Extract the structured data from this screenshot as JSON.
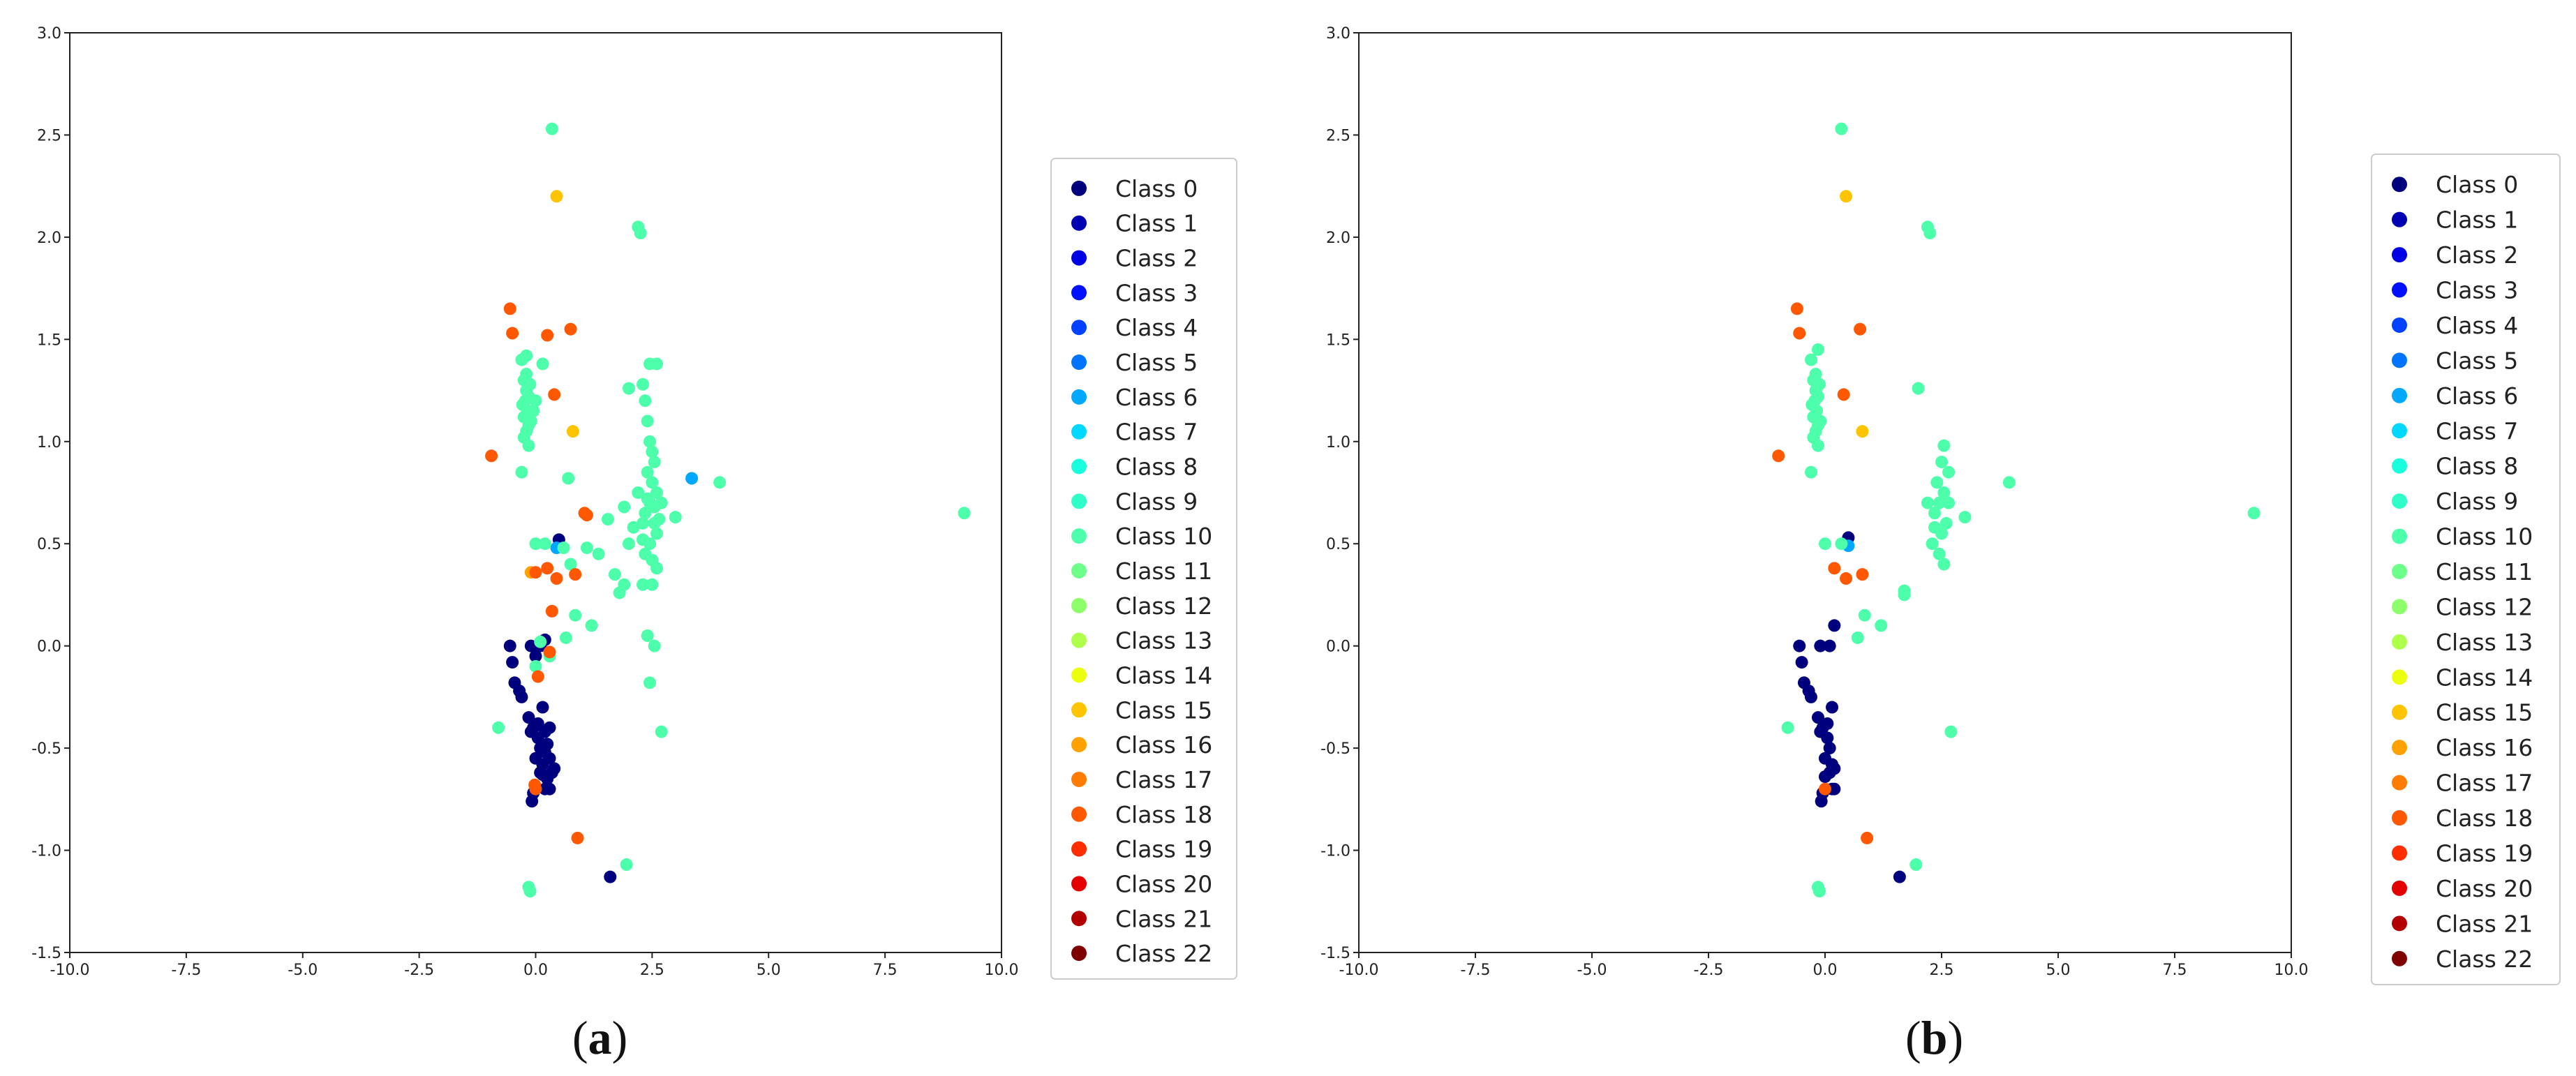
{
  "captions": {
    "a": "(a)",
    "b": "(b)",
    "a_letter": "a",
    "b_letter": "b"
  },
  "class_colors": [
    "#00007f",
    "#0000b2",
    "#0000e5",
    "#0010ff",
    "#0042ff",
    "#0074ff",
    "#00a8ff",
    "#00d8ff",
    "#18ffdd",
    "#2effc8",
    "#4dffaa",
    "#6dff8a",
    "#8dff6a",
    "#adff4a",
    "#ebff0c",
    "#ffc400",
    "#ffa100",
    "#ff7c00",
    "#ff5800",
    "#ff2d00",
    "#e40000",
    "#b20000",
    "#7f0000"
  ],
  "chart_data": [
    {
      "type": "scatter",
      "panel": "a",
      "title": "",
      "xlabel": "",
      "ylabel": "",
      "xlim": [
        -10.0,
        10.0
      ],
      "ylim": [
        -1.5,
        3.0
      ],
      "xticks": [
        "-10.0",
        "-7.5",
        "-5.0",
        "-2.5",
        "0.0",
        "2.5",
        "5.0",
        "7.5",
        "10.0"
      ],
      "yticks": [
        "-1.5",
        "-1.0",
        "-0.5",
        "0.0",
        "0.5",
        "1.0",
        "1.5",
        "2.0",
        "2.5",
        "3.0"
      ],
      "legend_position": "right, outside plot",
      "legend": [
        "Class 0",
        "Class 1",
        "Class 2",
        "Class 3",
        "Class 4",
        "Class 5",
        "Class 6",
        "Class 7",
        "Class 8",
        "Class 9",
        "Class 10",
        "Class 11",
        "Class 12",
        "Class 13",
        "Class 14",
        "Class 15",
        "Class 16",
        "Class 17",
        "Class 18",
        "Class 19",
        "Class 20",
        "Class 21",
        "Class 22"
      ],
      "series": [
        {
          "name": "Class 0",
          "color_index": 0,
          "points": [
            [
              -0.55,
              0.0
            ],
            [
              -0.5,
              -0.08
            ],
            [
              -0.45,
              -0.18
            ],
            [
              -0.35,
              -0.22
            ],
            [
              -0.3,
              -0.25
            ],
            [
              -0.1,
              0.0
            ],
            [
              0.0,
              -0.05
            ],
            [
              0.1,
              0.0
            ],
            [
              -0.15,
              -0.35
            ],
            [
              -0.05,
              -0.4
            ],
            [
              0.05,
              -0.38
            ],
            [
              0.15,
              -0.3
            ],
            [
              0.2,
              -0.42
            ],
            [
              0.25,
              -0.48
            ],
            [
              0.1,
              -0.5
            ],
            [
              0.0,
              -0.55
            ],
            [
              0.15,
              -0.58
            ],
            [
              0.3,
              -0.55
            ],
            [
              0.35,
              -0.62
            ],
            [
              0.4,
              -0.6
            ],
            [
              0.25,
              -0.65
            ],
            [
              0.1,
              -0.62
            ],
            [
              0.2,
              -0.7
            ],
            [
              0.3,
              -0.4
            ],
            [
              0.05,
              -0.45
            ],
            [
              -0.1,
              -0.42
            ],
            [
              0.2,
              -0.52
            ],
            [
              0.15,
              -0.63
            ],
            [
              -0.05,
              -0.72
            ],
            [
              -0.08,
              -0.76
            ],
            [
              0.3,
              -0.7
            ],
            [
              1.6,
              -1.13
            ],
            [
              0.5,
              0.52
            ],
            [
              0.2,
              0.03
            ]
          ]
        },
        {
          "name": "Class 6",
          "color_index": 6,
          "points": [
            [
              3.35,
              0.82
            ],
            [
              0.45,
              0.48
            ]
          ]
        },
        {
          "name": "Class 10",
          "color_index": 10,
          "points": [
            [
              0.35,
              2.53
            ],
            [
              2.2,
              2.05
            ],
            [
              2.25,
              2.02
            ],
            [
              -0.3,
              1.4
            ],
            [
              -0.2,
              1.42
            ],
            [
              0.15,
              1.38
            ],
            [
              -0.25,
              1.3
            ],
            [
              -0.2,
              1.25
            ],
            [
              -0.15,
              1.22
            ],
            [
              -0.22,
              1.2
            ],
            [
              -0.18,
              1.15
            ],
            [
              -0.25,
              1.12
            ],
            [
              -0.15,
              1.08
            ],
            [
              -0.2,
              1.05
            ],
            [
              -0.1,
              1.1
            ],
            [
              -0.28,
              1.18
            ],
            [
              -0.12,
              1.28
            ],
            [
              -0.2,
              1.33
            ],
            [
              -0.25,
              1.02
            ],
            [
              -0.15,
              0.98
            ],
            [
              0.0,
              1.2
            ],
            [
              -0.05,
              1.15
            ],
            [
              2.45,
              1.38
            ],
            [
              2.6,
              1.38
            ],
            [
              2.0,
              1.26
            ],
            [
              2.3,
              1.28
            ],
            [
              2.35,
              1.2
            ],
            [
              2.4,
              1.1
            ],
            [
              2.45,
              1.0
            ],
            [
              2.5,
              0.95
            ],
            [
              2.55,
              0.9
            ],
            [
              2.4,
              0.85
            ],
            [
              2.5,
              0.8
            ],
            [
              2.6,
              0.75
            ],
            [
              2.45,
              0.7
            ],
            [
              2.35,
              0.65
            ],
            [
              2.55,
              0.6
            ],
            [
              2.6,
              0.55
            ],
            [
              2.45,
              0.5
            ],
            [
              2.35,
              0.45
            ],
            [
              2.5,
              0.42
            ],
            [
              2.6,
              0.38
            ],
            [
              2.3,
              0.6
            ],
            [
              2.4,
              0.72
            ],
            [
              2.55,
              0.68
            ],
            [
              2.65,
              0.62
            ],
            [
              2.3,
              0.52
            ],
            [
              2.2,
              0.75
            ],
            [
              2.7,
              0.7
            ],
            [
              2.5,
              0.3
            ],
            [
              2.3,
              0.3
            ],
            [
              2.0,
              0.5
            ],
            [
              2.1,
              0.58
            ],
            [
              1.9,
              0.68
            ],
            [
              3.0,
              0.63
            ],
            [
              3.95,
              0.8
            ],
            [
              9.2,
              0.65
            ],
            [
              0.7,
              0.82
            ],
            [
              -0.3,
              0.85
            ],
            [
              0.0,
              0.5
            ],
            [
              0.2,
              0.5
            ],
            [
              0.6,
              0.48
            ],
            [
              0.75,
              0.4
            ],
            [
              1.1,
              0.48
            ],
            [
              1.35,
              0.45
            ],
            [
              1.55,
              0.62
            ],
            [
              1.7,
              0.35
            ],
            [
              1.9,
              0.3
            ],
            [
              1.8,
              0.26
            ],
            [
              0.85,
              0.15
            ],
            [
              0.65,
              0.04
            ],
            [
              0.1,
              0.02
            ],
            [
              0.3,
              -0.05
            ],
            [
              0.0,
              -0.1
            ],
            [
              1.2,
              0.1
            ],
            [
              2.4,
              0.05
            ],
            [
              2.55,
              0.0
            ],
            [
              2.45,
              -0.18
            ],
            [
              2.7,
              -0.42
            ],
            [
              -0.8,
              -0.4
            ],
            [
              1.95,
              -1.07
            ],
            [
              -0.15,
              -1.18
            ],
            [
              -0.12,
              -1.2
            ]
          ]
        },
        {
          "name": "Class 15",
          "color_index": 15,
          "points": [
            [
              0.45,
              2.2
            ],
            [
              0.8,
              1.05
            ]
          ]
        },
        {
          "name": "Class 16",
          "color_index": 16,
          "points": [
            [
              -0.1,
              0.36
            ]
          ]
        },
        {
          "name": "Class 18",
          "color_index": 18,
          "points": [
            [
              -0.55,
              1.65
            ],
            [
              -0.5,
              1.53
            ],
            [
              0.75,
              1.55
            ],
            [
              0.25,
              1.52
            ],
            [
              0.4,
              1.23
            ],
            [
              -0.95,
              0.93
            ],
            [
              1.05,
              0.65
            ],
            [
              1.1,
              0.64
            ],
            [
              0.0,
              0.36
            ],
            [
              0.25,
              0.38
            ],
            [
              0.45,
              0.33
            ],
            [
              0.85,
              0.35
            ],
            [
              0.35,
              0.17
            ],
            [
              0.05,
              -0.15
            ],
            [
              0.3,
              -0.03
            ],
            [
              0.0,
              -0.7
            ],
            [
              -0.02,
              -0.68
            ],
            [
              0.9,
              -0.94
            ]
          ]
        }
      ]
    },
    {
      "type": "scatter",
      "panel": "b",
      "title": "",
      "xlabel": "",
      "ylabel": "",
      "xlim": [
        -10.0,
        10.0
      ],
      "ylim": [
        -1.5,
        3.0
      ],
      "xticks": [
        "-10.0",
        "-7.5",
        "-5.0",
        "-2.5",
        "0.0",
        "2.5",
        "5.0",
        "7.5",
        "10.0"
      ],
      "yticks": [
        "-1.5",
        "-1.0",
        "-0.5",
        "0.0",
        "0.5",
        "1.0",
        "1.5",
        "2.0",
        "2.5",
        "3.0"
      ],
      "legend_position": "right, outside plot",
      "legend": [
        "Class 0",
        "Class 1",
        "Class 2",
        "Class 3",
        "Class 4",
        "Class 5",
        "Class 6",
        "Class 7",
        "Class 8",
        "Class 9",
        "Class 10",
        "Class 11",
        "Class 12",
        "Class 13",
        "Class 14",
        "Class 15",
        "Class 16",
        "Class 17",
        "Class 18",
        "Class 19",
        "Class 20",
        "Class 21",
        "Class 22"
      ],
      "series": [
        {
          "name": "Class 0",
          "color_index": 0,
          "points": [
            [
              -0.55,
              0.0
            ],
            [
              -0.5,
              -0.08
            ],
            [
              -0.45,
              -0.18
            ],
            [
              -0.35,
              -0.22
            ],
            [
              -0.3,
              -0.25
            ],
            [
              -0.1,
              0.0
            ],
            [
              0.1,
              0.0
            ],
            [
              0.2,
              0.1
            ],
            [
              -0.15,
              -0.35
            ],
            [
              -0.05,
              -0.4
            ],
            [
              0.05,
              -0.38
            ],
            [
              0.15,
              -0.3
            ],
            [
              0.1,
              -0.5
            ],
            [
              0.0,
              -0.55
            ],
            [
              0.15,
              -0.58
            ],
            [
              0.2,
              -0.6
            ],
            [
              0.1,
              -0.62
            ],
            [
              0.2,
              -0.7
            ],
            [
              0.05,
              -0.45
            ],
            [
              -0.1,
              -0.42
            ],
            [
              -0.05,
              -0.72
            ],
            [
              -0.08,
              -0.76
            ],
            [
              0.15,
              -0.7
            ],
            [
              0.0,
              -0.64
            ],
            [
              1.6,
              -1.13
            ],
            [
              0.5,
              0.53
            ]
          ]
        },
        {
          "name": "Class 6",
          "color_index": 6,
          "points": [
            [
              0.5,
              0.49
            ]
          ]
        },
        {
          "name": "Class 10",
          "color_index": 10,
          "points": [
            [
              0.35,
              2.53
            ],
            [
              2.2,
              2.05
            ],
            [
              2.25,
              2.02
            ],
            [
              -0.3,
              1.4
            ],
            [
              -0.15,
              1.45
            ],
            [
              -0.25,
              1.3
            ],
            [
              -0.2,
              1.25
            ],
            [
              -0.15,
              1.22
            ],
            [
              -0.22,
              1.2
            ],
            [
              -0.18,
              1.15
            ],
            [
              -0.25,
              1.12
            ],
            [
              -0.15,
              1.08
            ],
            [
              -0.2,
              1.05
            ],
            [
              -0.1,
              1.1
            ],
            [
              -0.28,
              1.18
            ],
            [
              -0.12,
              1.28
            ],
            [
              -0.2,
              1.33
            ],
            [
              -0.25,
              1.02
            ],
            [
              -0.15,
              0.98
            ],
            [
              2.0,
              1.26
            ],
            [
              2.55,
              0.98
            ],
            [
              2.5,
              0.9
            ],
            [
              2.65,
              0.85
            ],
            [
              2.4,
              0.8
            ],
            [
              2.55,
              0.75
            ],
            [
              2.45,
              0.7
            ],
            [
              2.35,
              0.65
            ],
            [
              2.6,
              0.6
            ],
            [
              2.5,
              0.55
            ],
            [
              2.3,
              0.5
            ],
            [
              2.45,
              0.45
            ],
            [
              2.55,
              0.4
            ],
            [
              2.2,
              0.7
            ],
            [
              2.65,
              0.7
            ],
            [
              2.35,
              0.58
            ],
            [
              3.0,
              0.63
            ],
            [
              3.95,
              0.8
            ],
            [
              9.2,
              0.65
            ],
            [
              -0.3,
              0.85
            ],
            [
              0.0,
              0.5
            ],
            [
              0.35,
              0.5
            ],
            [
              1.7,
              0.27
            ],
            [
              1.7,
              0.25
            ],
            [
              0.85,
              0.15
            ],
            [
              1.2,
              0.1
            ],
            [
              0.7,
              0.04
            ],
            [
              2.7,
              -0.42
            ],
            [
              -0.8,
              -0.4
            ],
            [
              1.95,
              -1.07
            ],
            [
              -0.15,
              -1.18
            ],
            [
              -0.12,
              -1.2
            ]
          ]
        },
        {
          "name": "Class 15",
          "color_index": 15,
          "points": [
            [
              0.45,
              2.2
            ],
            [
              0.8,
              1.05
            ]
          ]
        },
        {
          "name": "Class 18",
          "color_index": 18,
          "points": [
            [
              -0.6,
              1.65
            ],
            [
              -0.55,
              1.53
            ],
            [
              0.75,
              1.55
            ],
            [
              0.4,
              1.23
            ],
            [
              -1.0,
              0.93
            ],
            [
              0.2,
              0.38
            ],
            [
              0.45,
              0.33
            ],
            [
              0.8,
              0.35
            ],
            [
              0.0,
              -0.7
            ],
            [
              0.9,
              -0.94
            ]
          ]
        }
      ]
    }
  ]
}
